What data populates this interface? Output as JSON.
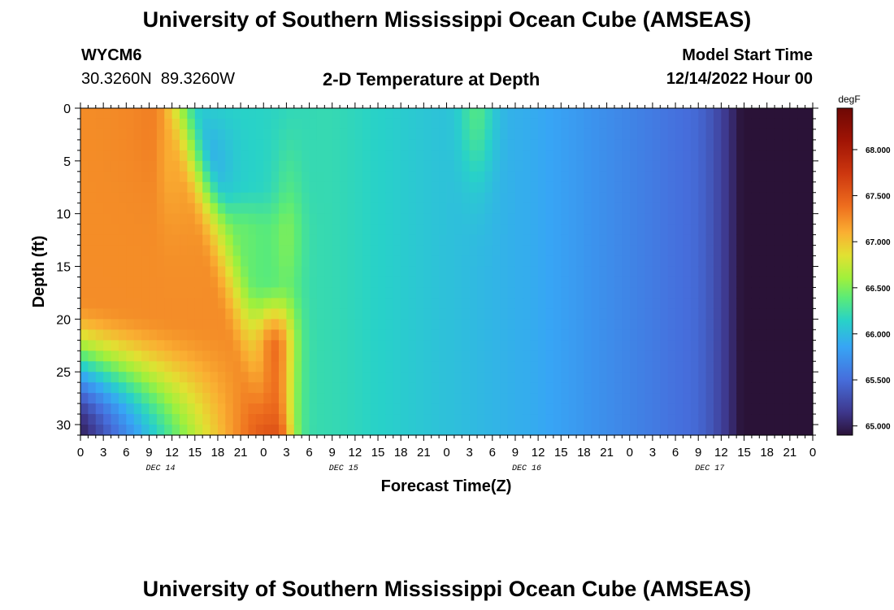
{
  "header": {
    "title": "University of Southern Mississippi Ocean Cube (AMSEAS)",
    "station_id": "WYCM6",
    "station_coords": "30.3260N  89.3260W",
    "plot_title": "2-D Temperature at Depth",
    "model_start_label": "Model Start Time",
    "model_start_value": "12/14/2022 Hour 00"
  },
  "footer": {
    "title": "University of Southern Mississippi Ocean Cube (AMSEAS)"
  },
  "chart_data": {
    "type": "heatmap",
    "title": "2-D Temperature at Depth",
    "xlabel": "Forecast Time(Z)",
    "ylabel": "Depth (ft)",
    "x_tick_labels": [
      "0",
      "3",
      "6",
      "9",
      "12",
      "15",
      "18",
      "21",
      "0",
      "3",
      "6",
      "9",
      "12",
      "15",
      "18",
      "21",
      "0",
      "3",
      "6",
      "9",
      "12",
      "15",
      "18",
      "21",
      "0",
      "3",
      "6",
      "9",
      "12",
      "15",
      "18",
      "21",
      "0"
    ],
    "day_labels": [
      "DEC 14",
      "DEC 15",
      "DEC 16",
      "DEC 17"
    ],
    "y_tick_labels": [
      "0",
      "5",
      "10",
      "15",
      "20",
      "25",
      "30"
    ],
    "xlim_hours": [
      0,
      96
    ],
    "ylim_ft": [
      0,
      31
    ],
    "colorbar": {
      "unit": "degF",
      "range": [
        64.9,
        68.45
      ],
      "tick_labels": [
        "65.000",
        "65.500",
        "66.000",
        "66.500",
        "67.000",
        "67.500",
        "68.000"
      ],
      "tick_values": [
        65.0,
        65.5,
        66.0,
        66.5,
        67.0,
        67.5,
        68.0
      ]
    }
  }
}
